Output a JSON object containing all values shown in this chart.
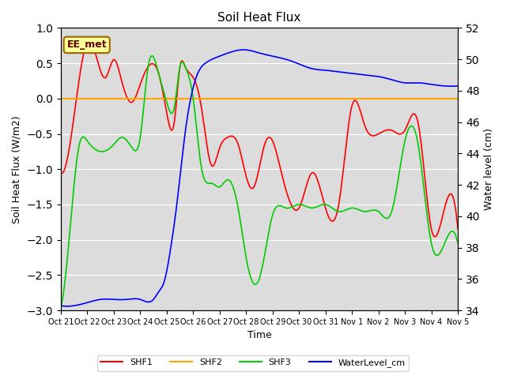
{
  "title": "Soil Heat Flux",
  "ylabel_left": "Soil Heat Flux (W/m2)",
  "ylabel_right": "Water level (cm)",
  "xlabel": "Time",
  "annotation": "EE_met",
  "ylim_left": [
    -3.0,
    1.0
  ],
  "ylim_right": [
    34,
    52
  ],
  "x_tick_labels": [
    "Oct 21",
    "Oct 22",
    "Oct 23",
    "Oct 24",
    "Oct 25",
    "Oct 26",
    "Oct 27",
    "Oct 28",
    "Oct 29",
    "Oct 30",
    "Oct 31",
    "Nov 1",
    "Nov 2",
    "Nov 3",
    "Nov 4",
    "Nov 5"
  ],
  "colors": {
    "SHF1": "#ff0000",
    "SHF2": "#ffa500",
    "SHF3": "#00cc00",
    "WaterLevel": "#0000ff",
    "annotation_bg": "#ffff99",
    "annotation_border": "#996600",
    "background": "#dcdcdc"
  },
  "shf1_keypoints_x": [
    0,
    0.3,
    1.0,
    1.3,
    1.7,
    2.0,
    2.3,
    2.7,
    3.0,
    3.3,
    3.7,
    4.0,
    4.3,
    4.5,
    4.7,
    5.0,
    5.3,
    5.7,
    6.0,
    6.3,
    6.7,
    7.0,
    7.3,
    7.7,
    8.0,
    8.3,
    8.7,
    9.0,
    9.5,
    10.0,
    10.5,
    11.0,
    11.5,
    12.0,
    12.5,
    13.0,
    13.5,
    14.0,
    14.5,
    15.0
  ],
  "shf1_keypoints_y": [
    -1.05,
    -0.75,
    0.8,
    0.65,
    0.3,
    0.55,
    0.25,
    -0.05,
    0.2,
    0.45,
    0.35,
    -0.2,
    -0.3,
    0.45,
    0.45,
    0.3,
    -0.1,
    -0.95,
    -0.7,
    -0.55,
    -0.65,
    -1.1,
    -1.25,
    -0.65,
    -0.6,
    -1.0,
    -1.5,
    -1.55,
    -1.05,
    -1.55,
    -1.5,
    -0.1,
    -0.4,
    -0.5,
    -0.45,
    -0.45,
    -0.35,
    -1.85,
    -1.55,
    -1.85
  ],
  "shf3_keypoints_x": [
    0,
    0.3,
    0.7,
    1.0,
    1.5,
    2.0,
    2.3,
    2.7,
    3.0,
    3.3,
    3.7,
    4.0,
    4.3,
    4.5,
    4.7,
    5.0,
    5.3,
    5.7,
    6.0,
    6.3,
    6.7,
    7.0,
    7.5,
    8.0,
    8.5,
    9.0,
    9.5,
    10.0,
    10.5,
    11.0,
    11.5,
    12.0,
    12.5,
    13.0,
    13.5,
    14.0,
    14.5,
    15.0
  ],
  "shf3_keypoints_y": [
    -2.95,
    -2.05,
    -0.65,
    -0.6,
    -0.75,
    -0.65,
    -0.55,
    -0.7,
    -0.55,
    0.45,
    0.35,
    -0.05,
    -0.1,
    0.45,
    0.45,
    -0.0,
    -0.95,
    -1.2,
    -1.25,
    -1.15,
    -1.55,
    -2.25,
    -2.55,
    -1.65,
    -1.55,
    -1.5,
    -1.55,
    -1.5,
    -1.6,
    -1.55,
    -1.6,
    -1.6,
    -1.6,
    -0.6,
    -0.65,
    -2.05,
    -2.05,
    -2.05
  ],
  "water_keypoints_x": [
    0,
    0.5,
    1.0,
    1.5,
    2.0,
    2.5,
    3.0,
    3.5,
    3.7,
    3.9,
    4.0,
    4.2,
    4.4,
    4.6,
    4.8,
    5.0,
    5.2,
    5.5,
    6.0,
    6.5,
    7.0,
    7.5,
    8.0,
    8.5,
    9.0,
    9.5,
    10.0,
    10.5,
    11.0,
    11.5,
    12.0,
    12.5,
    13.0,
    13.5,
    14.0,
    14.5,
    15.0
  ],
  "water_keypoints_y": [
    34.3,
    34.3,
    34.5,
    34.7,
    34.7,
    34.7,
    34.7,
    34.7,
    35.2,
    35.8,
    36.5,
    38.5,
    41.0,
    44.0,
    46.5,
    48.2,
    49.2,
    49.8,
    50.2,
    50.5,
    50.6,
    50.4,
    50.2,
    50.0,
    49.7,
    49.4,
    49.3,
    49.2,
    49.1,
    49.0,
    48.9,
    48.7,
    48.5,
    48.5,
    48.4,
    48.3,
    48.3
  ]
}
